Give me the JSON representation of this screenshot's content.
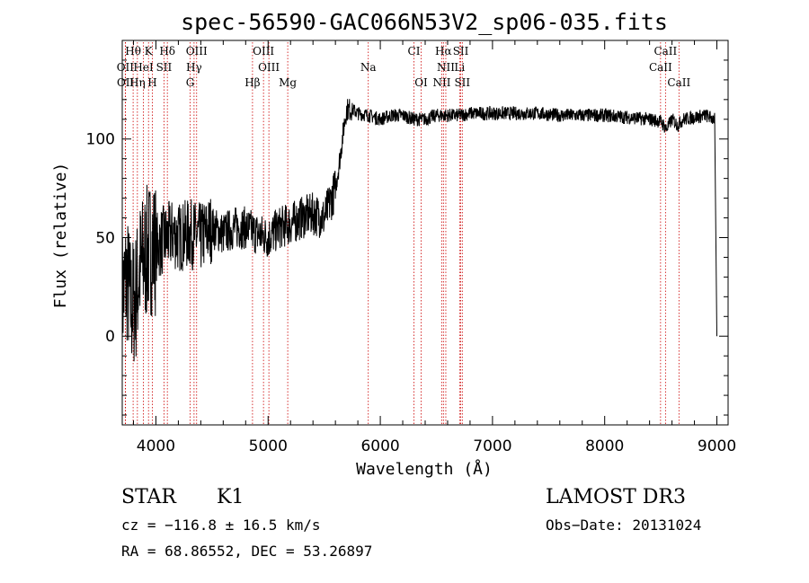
{
  "chart_data": {
    "type": "line",
    "title": "spec-56590-GAC066N53V2_sp06-035.fits",
    "xlabel": "Wavelength (Å)",
    "ylabel": "Flux (relative)",
    "xlim": [
      3700,
      9100
    ],
    "ylim": [
      -45,
      150
    ],
    "x_ticks": [
      4000,
      5000,
      6000,
      7000,
      8000,
      9000
    ],
    "y_ticks": [
      0,
      50,
      100
    ],
    "series": [
      {
        "name": "flux",
        "x": [
          3700,
          3740,
          3780,
          3820,
          3860,
          3900,
          3950,
          4000,
          4050,
          4100,
          4150,
          4200,
          4300,
          4400,
          4500,
          4600,
          4700,
          4800,
          4900,
          5000,
          5100,
          5200,
          5300,
          5400,
          5500,
          5600,
          5640,
          5680,
          5700,
          5750,
          5800,
          5900,
          6000,
          6100,
          6200,
          6300,
          6400,
          6500,
          6600,
          6700,
          6800,
          6900,
          7000,
          7200,
          7400,
          7600,
          7800,
          8000,
          8200,
          8400,
          8500,
          8550,
          8600,
          8650,
          8700,
          8800,
          8900,
          8980,
          9000
        ],
        "values": [
          20,
          30,
          15,
          20,
          35,
          40,
          45,
          45,
          48,
          50,
          52,
          50,
          52,
          50,
          55,
          52,
          55,
          55,
          52,
          50,
          55,
          57,
          60,
          62,
          60,
          75,
          90,
          108,
          115,
          115,
          113,
          112,
          110,
          112,
          112,
          110,
          110,
          112,
          112,
          112,
          113,
          113,
          113,
          113,
          113,
          112,
          112,
          112,
          111,
          110,
          109,
          105,
          110,
          107,
          110,
          111,
          112,
          110,
          0
        ]
      }
    ],
    "noise_seed": 7,
    "spectral_lines": [
      {
        "label": "Hθ",
        "wavelength": 3797,
        "row": 1
      },
      {
        "label": "K",
        "wavelength": 3934,
        "row": 1
      },
      {
        "label": "Hδ",
        "wavelength": 4102,
        "row": 1
      },
      {
        "label": "OIII",
        "wavelength": 4363,
        "row": 1
      },
      {
        "label": "OIII",
        "wavelength": 4959,
        "row": 1
      },
      {
        "label": "CI",
        "wavelength": 6300,
        "row": 1
      },
      {
        "label": "Hα",
        "wavelength": 6563,
        "row": 1
      },
      {
        "label": "SII",
        "wavelength": 6717,
        "row": 1
      },
      {
        "label": "CaII",
        "wavelength": 8542,
        "row": 1
      },
      {
        "label": "OII",
        "wavelength": 3727,
        "row": 2
      },
      {
        "label": "HeI",
        "wavelength": 3889,
        "row": 2
      },
      {
        "label": "SII",
        "wavelength": 4072,
        "row": 2
      },
      {
        "label": "Hγ",
        "wavelength": 4340,
        "row": 2
      },
      {
        "label": "OIII",
        "wavelength": 5007,
        "row": 2
      },
      {
        "label": "Na",
        "wavelength": 5893,
        "row": 2
      },
      {
        "label": "NII",
        "wavelength": 6584,
        "row": 2
      },
      {
        "label": "Li",
        "wavelength": 6707,
        "row": 2
      },
      {
        "label": "CaII",
        "wavelength": 8498,
        "row": 2
      },
      {
        "label": "OII",
        "wavelength": 3729,
        "row": 3
      },
      {
        "label": "Hη",
        "wavelength": 3835,
        "row": 3
      },
      {
        "label": "H",
        "wavelength": 3968,
        "row": 3
      },
      {
        "label": "G",
        "wavelength": 4305,
        "row": 3
      },
      {
        "label": "Hβ",
        "wavelength": 4861,
        "row": 3
      },
      {
        "label": "Mg",
        "wavelength": 5175,
        "row": 3
      },
      {
        "label": "OI",
        "wavelength": 6364,
        "row": 3
      },
      {
        "label": "NII",
        "wavelength": 6548,
        "row": 3
      },
      {
        "label": "SII",
        "wavelength": 6731,
        "row": 3
      },
      {
        "label": "CaII",
        "wavelength": 8662,
        "row": 3
      }
    ],
    "line_color": "#000000",
    "marker_color": "#cc0000"
  },
  "info": {
    "object_class": "STAR",
    "subclass": "K1",
    "survey": "LAMOST DR3",
    "cz": "cz = −116.8 ± 16.5 km/s",
    "obs_date": "Obs−Date: 20131024",
    "coords": "RA =  68.86552, DEC =  53.26897"
  }
}
